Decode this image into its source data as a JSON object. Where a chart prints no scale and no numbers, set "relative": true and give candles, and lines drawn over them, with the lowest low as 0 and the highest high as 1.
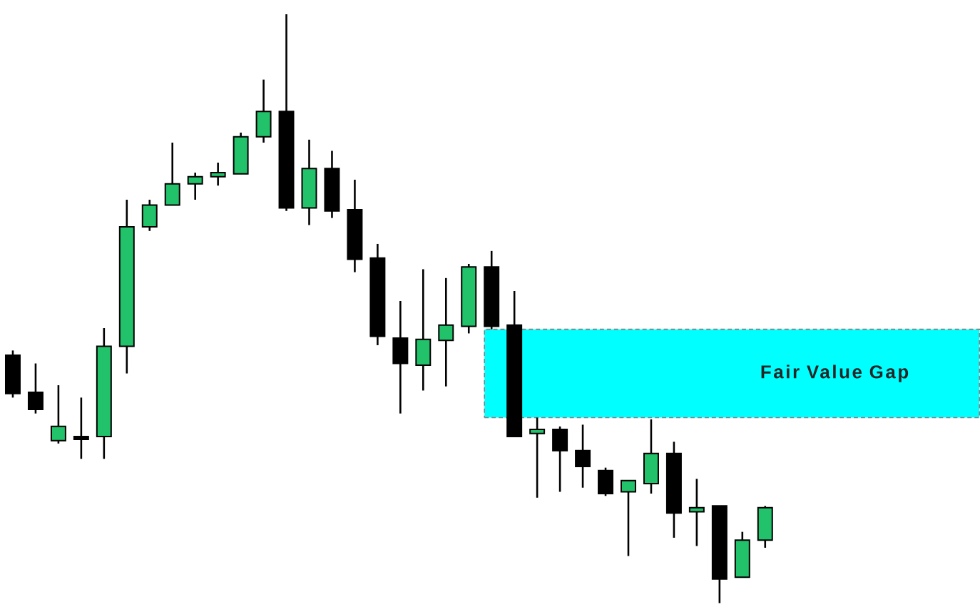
{
  "chart_data": {
    "type": "candlestick",
    "relative": true,
    "categories": [
      null,
      null,
      null,
      null,
      null,
      null,
      null,
      null,
      null,
      null,
      null,
      null,
      null,
      null,
      null,
      null,
      null,
      null,
      null,
      null,
      null,
      null,
      null,
      null,
      null,
      null,
      null,
      null,
      null,
      null,
      null,
      null,
      null,
      null
    ],
    "ohlc": [
      [
        0.421,
        0.429,
        0.349,
        0.356
      ],
      [
        0.358,
        0.407,
        0.322,
        0.329
      ],
      [
        0.276,
        0.37,
        0.271,
        0.3
      ],
      [
        0.283,
        0.349,
        0.245,
        0.278
      ],
      [
        0.283,
        0.467,
        0.245,
        0.436
      ],
      [
        0.436,
        0.685,
        0.39,
        0.639
      ],
      [
        0.639,
        0.685,
        0.632,
        0.676
      ],
      [
        0.676,
        0.782,
        0.676,
        0.712
      ],
      [
        0.712,
        0.731,
        0.685,
        0.724
      ],
      [
        0.724,
        0.748,
        0.709,
        0.731
      ],
      [
        0.729,
        0.799,
        0.729,
        0.792
      ],
      [
        0.792,
        0.889,
        0.782,
        0.835
      ],
      [
        0.835,
        1,
        0.666,
        0.671
      ],
      [
        0.671,
        0.787,
        0.642,
        0.738
      ],
      [
        0.738,
        0.768,
        0.654,
        0.666
      ],
      [
        0.668,
        0.719,
        0.562,
        0.584
      ],
      [
        0.586,
        0.61,
        0.438,
        0.453
      ],
      [
        0.45,
        0.513,
        0.322,
        0.407
      ],
      [
        0.404,
        0.567,
        0.361,
        0.448
      ],
      [
        0.446,
        0.552,
        0.368,
        0.472
      ],
      [
        0.47,
        0.576,
        0.458,
        0.571
      ],
      [
        0.571,
        0.598,
        0.465,
        0.47
      ],
      [
        0.472,
        0.53,
        0.283,
        0.283
      ],
      [
        0.288,
        0.315,
        0.179,
        0.295
      ],
      [
        0.295,
        0.3,
        0.189,
        0.259
      ],
      [
        0.259,
        0.303,
        0.196,
        0.232
      ],
      [
        0.225,
        0.23,
        0.182,
        0.186
      ],
      [
        0.189,
        0.208,
        0.08,
        0.208
      ],
      [
        0.203,
        0.312,
        0.186,
        0.254
      ],
      [
        0.254,
        0.274,
        0.111,
        0.153
      ],
      [
        0.155,
        0.211,
        0.097,
        0.162
      ],
      [
        0.165,
        0.165,
        0.0,
        0.041
      ],
      [
        0.044,
        0.121,
        0.044,
        0.107
      ],
      [
        0.107,
        0.165,
        0.094,
        0.162
      ]
    ],
    "colors": [
      "#000000",
      "#000000",
      "#22c26b",
      "#000000",
      "#22c26b",
      "#22c26b",
      "#22c26b",
      "#22c26b",
      "#22c26b",
      "#22c26b",
      "#22c26b",
      "#22c26b",
      "#000000",
      "#22c26b",
      "#000000",
      "#000000",
      "#000000",
      "#000000",
      "#22c26b",
      "#22c26b",
      "#22c26b",
      "#000000",
      "#000000",
      "#22c26b",
      "#000000",
      "#000000",
      "#000000",
      "#22c26b",
      "#22c26b",
      "#000000",
      "#22c26b",
      "#000000",
      "#22c26b",
      "#22c26b"
    ],
    "bands": [
      {
        "axis": "y",
        "from": 0.315,
        "to": 0.465,
        "label": "Fair Value Gap",
        "color": "#00ffff"
      }
    ]
  }
}
